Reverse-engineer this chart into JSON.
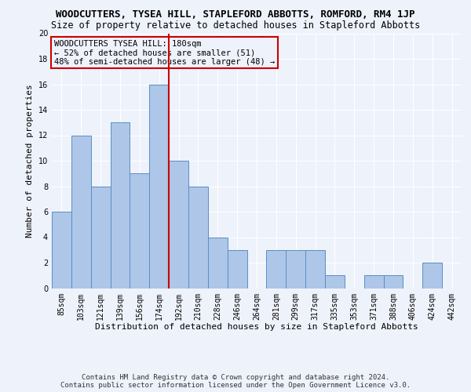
{
  "title": "WOODCUTTERS, TYSEA HILL, STAPLEFORD ABBOTTS, ROMFORD, RM4 1JP",
  "subtitle": "Size of property relative to detached houses in Stapleford Abbotts",
  "xlabel": "Distribution of detached houses by size in Stapleford Abbotts",
  "ylabel": "Number of detached properties",
  "footer1": "Contains HM Land Registry data © Crown copyright and database right 2024.",
  "footer2": "Contains public sector information licensed under the Open Government Licence v3.0.",
  "annotation_line1": "WOODCUTTERS TYSEA HILL: 180sqm",
  "annotation_line2": "← 52% of detached houses are smaller (51)",
  "annotation_line3": "48% of semi-detached houses are larger (48) →",
  "bar_labels": [
    "85sqm",
    "103sqm",
    "121sqm",
    "139sqm",
    "156sqm",
    "174sqm",
    "192sqm",
    "210sqm",
    "228sqm",
    "246sqm",
    "264sqm",
    "281sqm",
    "299sqm",
    "317sqm",
    "335sqm",
    "353sqm",
    "371sqm",
    "388sqm",
    "406sqm",
    "424sqm",
    "442sqm"
  ],
  "bar_values": [
    6,
    12,
    8,
    13,
    9,
    16,
    10,
    8,
    4,
    3,
    0,
    3,
    3,
    3,
    1,
    0,
    1,
    1,
    0,
    2,
    0
  ],
  "bar_color": "#aec6e8",
  "bar_edgecolor": "#5a8fc2",
  "vline_index": 5.5,
  "vline_color": "#cc0000",
  "ylim": [
    0,
    20
  ],
  "yticks": [
    0,
    2,
    4,
    6,
    8,
    10,
    12,
    14,
    16,
    18,
    20
  ],
  "bg_color": "#eef2fb",
  "grid_color": "#ffffff",
  "annotation_box_edgecolor": "#cc0000",
  "title_fontsize": 9,
  "subtitle_fontsize": 8.5,
  "ylabel_fontsize": 8,
  "xlabel_fontsize": 8,
  "tick_fontsize": 7,
  "annotation_fontsize": 7.5,
  "footer_fontsize": 6.5
}
